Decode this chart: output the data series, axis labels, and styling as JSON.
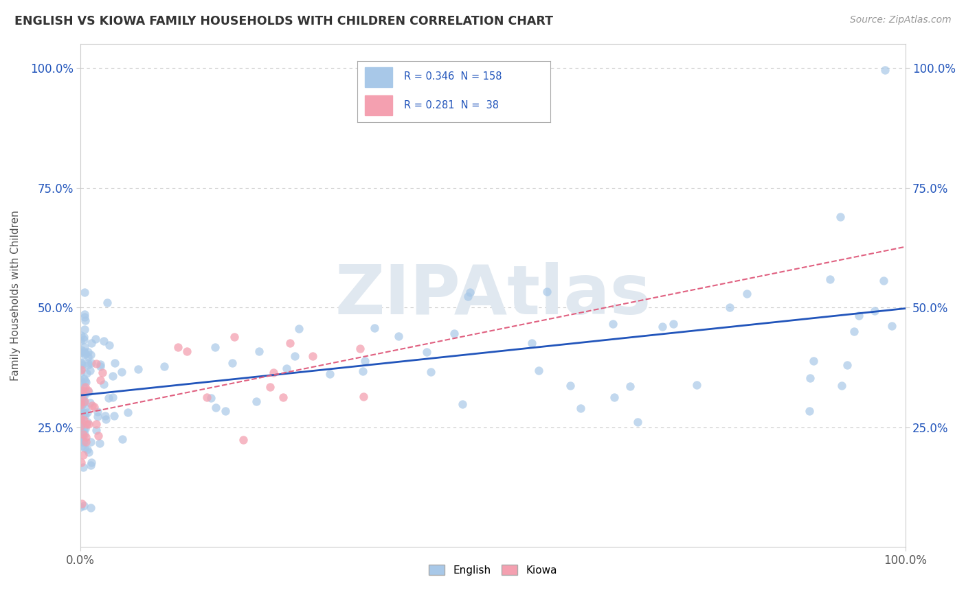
{
  "title": "ENGLISH VS KIOWA FAMILY HOUSEHOLDS WITH CHILDREN CORRELATION CHART",
  "source": "Source: ZipAtlas.com",
  "watermark": "ZIPAtlas",
  "ylabel": "Family Households with Children",
  "xlim": [
    0,
    1
  ],
  "ylim": [
    0,
    1.05
  ],
  "xtick_labels": [
    "0.0%",
    "100.0%"
  ],
  "ytick_labels": [
    "25.0%",
    "50.0%",
    "75.0%",
    "100.0%"
  ],
  "ytick_positions": [
    0.25,
    0.5,
    0.75,
    1.0
  ],
  "english_color": "#a8c8e8",
  "kiowa_color": "#f4a0b0",
  "english_line_color": "#2255bb",
  "kiowa_line_color": "#e06080",
  "english_R": 0.346,
  "english_N": 158,
  "kiowa_R": 0.281,
  "kiowa_N": 38,
  "legend_english": "English",
  "legend_kiowa": "Kiowa",
  "background_color": "#ffffff",
  "grid_color": "#cccccc",
  "watermark_color": "#e0e8f0",
  "watermark_text": "ZIPAtlas"
}
